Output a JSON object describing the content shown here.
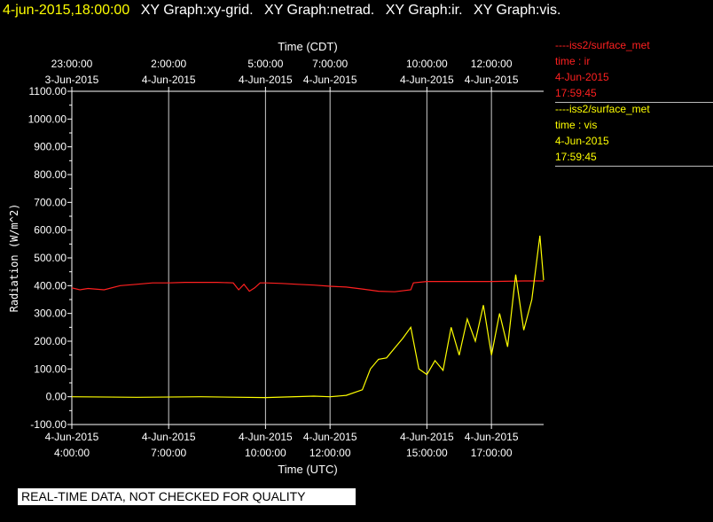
{
  "header": {
    "timestamp": "4-jun-2015,18:00:00",
    "graphs": [
      "XY Graph:xy-grid.",
      "XY Graph:netrad.",
      "XY Graph:ir.",
      "XY Graph:vis."
    ]
  },
  "legend": [
    {
      "line1": "----iss2/surface_met",
      "line2": "time : ir",
      "line3": "4-Jun-2015",
      "line4": "17:59:45",
      "color": "#ff2020"
    },
    {
      "line1": "----iss2/surface_met",
      "line2": "time : vis",
      "line3": "4-Jun-2015",
      "line4": "17:59:45",
      "color": "#ffff00"
    }
  ],
  "disclaimer": "REAL-TIME DATA, NOT CHECKED FOR QUALITY",
  "chart_data": {
    "type": "line",
    "title": "",
    "xlabel": "Time (UTC)",
    "x2label": "Time (CDT)",
    "ylabel": "Radiation (W/m^2)",
    "xlim": [
      "2015-06-04 04:00:00",
      "2015-06-04 18:37:00"
    ],
    "ylim": [
      -100,
      1100
    ],
    "y_ticks": [
      "-100.00",
      "0.00",
      "100.00",
      "200.00",
      "300.00",
      "400.00",
      "500.00",
      "600.00",
      "700.00",
      "800.00",
      "900.00",
      "1000.00",
      "1100.00"
    ],
    "x_ticks_bottom": [
      {
        "t": "2015-06-04 04:00:00",
        "date": "4-Jun-2015",
        "time": "4:00:00"
      },
      {
        "t": "2015-06-04 07:00:00",
        "date": "4-Jun-2015",
        "time": "7:00:00"
      },
      {
        "t": "2015-06-04 10:00:00",
        "date": "4-Jun-2015",
        "time": "10:00:00"
      },
      {
        "t": "2015-06-04 12:00:00",
        "date": "4-Jun-2015",
        "time": "12:00:00"
      },
      {
        "t": "2015-06-04 15:00:00",
        "date": "4-Jun-2015",
        "time": "15:00:00"
      },
      {
        "t": "2015-06-04 17:00:00",
        "date": "4-Jun-2015",
        "time": "17:00:00"
      }
    ],
    "x_ticks_top": [
      {
        "t": "2015-06-04 04:00:00",
        "date": "3-Jun-2015",
        "time": "23:00:00"
      },
      {
        "t": "2015-06-04 07:00:00",
        "date": "4-Jun-2015",
        "time": "2:00:00"
      },
      {
        "t": "2015-06-04 10:00:00",
        "date": "4-Jun-2015",
        "time": "5:00:00"
      },
      {
        "t": "2015-06-04 12:00:00",
        "date": "4-Jun-2015",
        "time": "7:00:00"
      },
      {
        "t": "2015-06-04 15:00:00",
        "date": "4-Jun-2015",
        "time": "10:00:00"
      },
      {
        "t": "2015-06-04 17:00:00",
        "date": "4-Jun-2015",
        "time": "12:00:00"
      }
    ],
    "grid": true,
    "series": [
      {
        "name": "time : ir",
        "color": "#ff2020",
        "x": [
          "2015-06-04 04:00",
          "2015-06-04 04:15",
          "2015-06-04 04:30",
          "2015-06-04 05:00",
          "2015-06-04 05:30",
          "2015-06-04 06:00",
          "2015-06-04 06:30",
          "2015-06-04 07:00",
          "2015-06-04 07:30",
          "2015-06-04 08:00",
          "2015-06-04 08:30",
          "2015-06-04 09:00",
          "2015-06-04 09:10",
          "2015-06-04 09:20",
          "2015-06-04 09:30",
          "2015-06-04 09:40",
          "2015-06-04 09:50",
          "2015-06-04 10:00",
          "2015-06-04 10:30",
          "2015-06-04 11:00",
          "2015-06-04 11:30",
          "2015-06-04 12:00",
          "2015-06-04 12:30",
          "2015-06-04 13:00",
          "2015-06-04 13:30",
          "2015-06-04 14:00",
          "2015-06-04 14:30",
          "2015-06-04 14:35",
          "2015-06-04 15:00",
          "2015-06-04 16:00",
          "2015-06-04 17:00",
          "2015-06-04 18:00",
          "2015-06-04 18:37"
        ],
        "values": [
          392,
          385,
          390,
          385,
          400,
          405,
          410,
          410,
          412,
          412,
          412,
          410,
          385,
          405,
          380,
          392,
          410,
          410,
          408,
          405,
          402,
          398,
          395,
          388,
          380,
          378,
          385,
          410,
          415,
          415,
          415,
          417,
          417
        ]
      },
      {
        "name": "time : vis",
        "color": "#ffff00",
        "x": [
          "2015-06-04 04:00",
          "2015-06-04 06:00",
          "2015-06-04 08:00",
          "2015-06-04 10:00",
          "2015-06-04 11:30",
          "2015-06-04 12:00",
          "2015-06-04 12:30",
          "2015-06-04 13:00",
          "2015-06-04 13:15",
          "2015-06-04 13:30",
          "2015-06-04 13:45",
          "2015-06-04 14:00",
          "2015-06-04 14:15",
          "2015-06-04 14:30",
          "2015-06-04 14:45",
          "2015-06-04 15:00",
          "2015-06-04 15:15",
          "2015-06-04 15:30",
          "2015-06-04 15:45",
          "2015-06-04 16:00",
          "2015-06-04 16:15",
          "2015-06-04 16:30",
          "2015-06-04 16:45",
          "2015-06-04 17:00",
          "2015-06-04 17:15",
          "2015-06-04 17:30",
          "2015-06-04 17:45",
          "2015-06-04 18:00",
          "2015-06-04 18:15",
          "2015-06-04 18:30",
          "2015-06-04 18:37"
        ],
        "values": [
          0,
          -2,
          0,
          -3,
          2,
          0,
          5,
          25,
          100,
          135,
          140,
          175,
          210,
          250,
          100,
          80,
          130,
          95,
          250,
          150,
          280,
          200,
          330,
          150,
          300,
          180,
          440,
          240,
          350,
          580,
          420
        ]
      }
    ]
  }
}
